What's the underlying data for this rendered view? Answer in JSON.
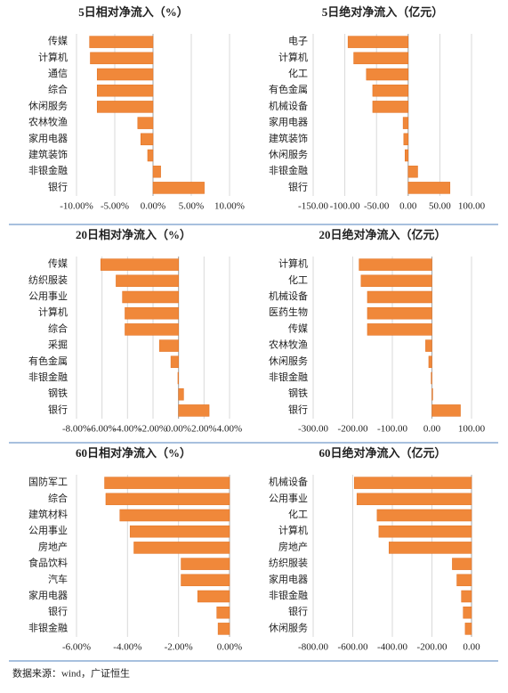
{
  "chart_data": [
    {
      "type": "bar",
      "orientation": "horizontal",
      "title": "5日相对净流入（%）",
      "color": "#f0883a",
      "grid": true,
      "categories": [
        "传媒",
        "计算机",
        "通信",
        "综合",
        "休闲服务",
        "农林牧渔",
        "家用电器",
        "建筑装饰",
        "非银金融",
        "银行"
      ],
      "values": [
        -8.3,
        -8.2,
        -7.3,
        -7.3,
        -7.3,
        -2.0,
        -1.6,
        -0.7,
        1.0,
        6.7
      ],
      "xlim": [
        -10,
        10
      ],
      "xticks": [
        {
          "value": -10,
          "label": "-10.00%"
        },
        {
          "value": -5,
          "label": "-5.00%"
        },
        {
          "value": 0,
          "label": "0.00%"
        },
        {
          "value": 5,
          "label": "5.00%"
        },
        {
          "value": 10,
          "label": "10.00%"
        }
      ]
    },
    {
      "type": "bar",
      "orientation": "horizontal",
      "title": "5日绝对净流入（亿元）",
      "color": "#f0883a",
      "grid": true,
      "categories": [
        "电子",
        "计算机",
        "化工",
        "有色金属",
        "机械设备",
        "家用电器",
        "建筑装饰",
        "休闲服务",
        "非银金融",
        "银行"
      ],
      "values": [
        -95,
        -86,
        -66,
        -56,
        -56,
        -8,
        -7,
        -5,
        15,
        66
      ],
      "xlim": [
        -150,
        100
      ],
      "xticks": [
        {
          "value": -150,
          "label": "-150.00"
        },
        {
          "value": -100,
          "label": "-100.00"
        },
        {
          "value": -50,
          "label": "-50.00"
        },
        {
          "value": 0,
          "label": "0.00"
        },
        {
          "value": 50,
          "label": "50.00"
        },
        {
          "value": 100,
          "label": "100.00"
        }
      ]
    },
    {
      "type": "bar",
      "orientation": "horizontal",
      "title": "20日相对净流入（%）",
      "color": "#f0883a",
      "grid": true,
      "categories": [
        "传媒",
        "纺织服装",
        "公用事业",
        "计算机",
        "综合",
        "采掘",
        "有色金属",
        "非银金融",
        "钢铁",
        "银行"
      ],
      "values": [
        -6.1,
        -4.9,
        -4.4,
        -4.2,
        -4.2,
        -1.5,
        -0.6,
        -0.05,
        0.4,
        2.4
      ],
      "xlim": [
        -8,
        4
      ],
      "xticks": [
        {
          "value": -8,
          "label": "-8.00%"
        },
        {
          "value": -6,
          "label": "-6.00%"
        },
        {
          "value": -4,
          "label": "-4.00%"
        },
        {
          "value": -2,
          "label": "-2.00%"
        },
        {
          "value": 0,
          "label": "0.00%"
        },
        {
          "value": 2,
          "label": "2.00%"
        },
        {
          "value": 4,
          "label": "4.00%"
        }
      ]
    },
    {
      "type": "bar",
      "orientation": "horizontal",
      "title": "20日绝对净流入（亿元）",
      "color": "#f0883a",
      "grid": true,
      "categories": [
        "计算机",
        "化工",
        "机械设备",
        "医药生物",
        "传媒",
        "农林牧渔",
        "休闲服务",
        "非银金融",
        "钢铁",
        "银行"
      ],
      "values": [
        -184,
        -179,
        -163,
        -163,
        -163,
        -16,
        -8,
        -2,
        2,
        72
      ],
      "xlim": [
        -300,
        100
      ],
      "xticks": [
        {
          "value": -300,
          "label": "-300.00"
        },
        {
          "value": -200,
          "label": "-200.00"
        },
        {
          "value": -100,
          "label": "-100.00"
        },
        {
          "value": 0,
          "label": "0.00"
        },
        {
          "value": 100,
          "label": "100.00"
        }
      ]
    },
    {
      "type": "bar",
      "orientation": "horizontal",
      "title": "60日相对净流入（%）",
      "color": "#f0883a",
      "grid": true,
      "categories": [
        "国防军工",
        "综合",
        "建筑材料",
        "公用事业",
        "房地产",
        "食品饮料",
        "汽车",
        "家用电器",
        "银行",
        "非银金融"
      ],
      "values": [
        -4.9,
        -4.85,
        -4.3,
        -3.9,
        -3.75,
        -1.9,
        -1.9,
        -1.25,
        -0.5,
        -0.45
      ],
      "xlim": [
        -6,
        0
      ],
      "xticks": [
        {
          "value": -6,
          "label": "-6.00%"
        },
        {
          "value": -4,
          "label": "-4.00%"
        },
        {
          "value": -2,
          "label": "-2.00%"
        },
        {
          "value": 0,
          "label": "0.00%"
        }
      ]
    },
    {
      "type": "bar",
      "orientation": "horizontal",
      "title": "60日绝对净流入（亿元）",
      "color": "#f0883a",
      "grid": true,
      "categories": [
        "机械设备",
        "公用事业",
        "化工",
        "计算机",
        "房地产",
        "纺织服装",
        "家用电器",
        "非银金融",
        "银行",
        "休闲服务"
      ],
      "values": [
        -592,
        -579,
        -477,
        -468,
        -417,
        -97,
        -74,
        -51,
        -42,
        -32
      ],
      "xlim": [
        -800,
        0
      ],
      "xticks": [
        {
          "value": -800,
          "label": "-800.00"
        },
        {
          "value": -600,
          "label": "-600.00"
        },
        {
          "value": -400,
          "label": "-400.00"
        },
        {
          "value": -200,
          "label": "-200.00"
        },
        {
          "value": 0,
          "label": "0.00"
        }
      ]
    }
  ],
  "source": "数据来源：wind，广证恒生"
}
